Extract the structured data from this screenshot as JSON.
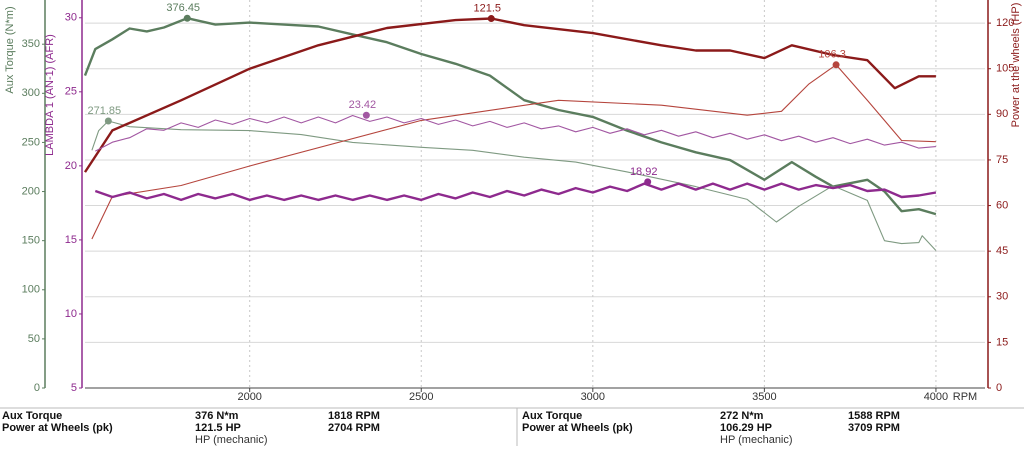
{
  "chart_data": {
    "type": "line",
    "xlabel": "RPM",
    "xlim": [
      1520,
      4143
    ],
    "xticks": [
      2000,
      2500,
      3000,
      3500,
      4000
    ],
    "ylabel": "Aux Torque (N*m)",
    "ycolor": "#5b7d5e",
    "ylim": [
      0,
      395
    ],
    "yticks": [
      0,
      50,
      100,
      150,
      200,
      250,
      300,
      350
    ],
    "y2label": "Power at the wheels (HP)",
    "y2color": "#8b1a1a",
    "y2lim": [
      0,
      127.6
    ],
    "y2ticks": [
      0,
      15,
      30,
      45,
      60,
      75,
      90,
      105,
      120
    ],
    "y3label": "LAMBDA 1 (AN-1) (AFR)",
    "y3color": "#8e2a8e",
    "y3lim": [
      5,
      31.2
    ],
    "y3ticks": [
      5,
      10,
      15,
      20,
      25,
      30
    ],
    "grid": true,
    "series": [
      {
        "axis": "y",
        "color": "#5b7d5e",
        "width": 2.4,
        "x": [
          1520,
          1550,
          1600,
          1650,
          1700,
          1750,
          1818,
          1900,
          2000,
          2100,
          2200,
          2300,
          2400,
          2500,
          2600,
          2700,
          2800,
          2900,
          3000,
          3100,
          3200,
          3300,
          3400,
          3500,
          3580,
          3650,
          3700,
          3800,
          3850,
          3900,
          3950,
          4000
        ],
        "values": [
          318,
          345,
          355,
          366,
          363,
          367,
          376.45,
          370,
          372,
          370,
          368,
          360,
          352,
          340,
          330,
          318,
          293,
          283,
          276,
          262,
          250,
          240,
          232,
          212,
          230,
          215,
          205,
          212,
          200,
          180,
          182,
          177
        ],
        "peak": {
          "x": 1818,
          "value": 376.45,
          "label": "376.45"
        }
      },
      {
        "axis": "y",
        "color": "#7f9a82",
        "width": 1.1,
        "x": [
          1540,
          1560,
          1588,
          1650,
          1700,
          1800,
          2000,
          2150,
          2300,
          2500,
          2650,
          2800,
          2950,
          3100,
          3300,
          3450,
          3535,
          3600,
          3700,
          3800,
          3850,
          3900,
          3950,
          3960,
          4000
        ],
        "values": [
          242,
          262,
          271.85,
          266,
          265,
          263,
          262,
          258,
          250,
          245,
          242,
          235,
          230,
          220,
          205,
          192,
          169,
          185,
          206,
          191,
          150,
          147,
          148,
          155,
          140
        ],
        "peak": {
          "x": 1588,
          "value": 271.85,
          "label": "271.85"
        }
      },
      {
        "axis": "y2",
        "color": "#8b1a1a",
        "width": 2.4,
        "x": [
          1520,
          1600,
          1800,
          2000,
          2200,
          2400,
          2600,
          2704,
          2800,
          3000,
          3200,
          3300,
          3400,
          3500,
          3580,
          3700,
          3800,
          3880,
          3950,
          4000
        ],
        "values": [
          71,
          84.7,
          94.6,
          105,
          112.7,
          118.4,
          121,
          121.5,
          119.3,
          116.7,
          112.7,
          111,
          111,
          108.5,
          112.7,
          109.5,
          107.8,
          98.6,
          102.5,
          102.5
        ],
        "peak": {
          "x": 2704,
          "value": 121.5,
          "label": "121.5"
        }
      },
      {
        "axis": "y2",
        "color": "#b5453d",
        "width": 1.1,
        "x": [
          1540,
          1600,
          1800,
          2000,
          2500,
          2900,
          3200,
          3450,
          3550,
          3630,
          3709,
          3800,
          3900,
          4000
        ],
        "values": [
          49,
          63,
          66.6,
          73,
          88,
          94.6,
          93,
          89.7,
          91,
          100,
          106.29,
          94.6,
          81.4,
          81
        ],
        "peak": {
          "x": 3709,
          "value": 106.29,
          "label": "106.3"
        }
      },
      {
        "axis": "y3",
        "color": "#8e2a8e",
        "width": 2.4,
        "x": [
          1550,
          1600,
          1650,
          1700,
          1750,
          1800,
          1850,
          1900,
          1950,
          2000,
          2050,
          2100,
          2150,
          2200,
          2250,
          2300,
          2350,
          2400,
          2450,
          2500,
          2550,
          2600,
          2650,
          2700,
          2750,
          2800,
          2850,
          2900,
          2950,
          3000,
          3050,
          3100,
          3150,
          3200,
          3250,
          3300,
          3350,
          3400,
          3450,
          3500,
          3550,
          3600,
          3650,
          3700,
          3750,
          3800,
          3850,
          3900,
          3950,
          4000
        ],
        "values": [
          18.3,
          17.9,
          18.2,
          17.8,
          18.1,
          17.7,
          18.1,
          17.8,
          18.1,
          17.7,
          18.0,
          17.7,
          18.0,
          17.7,
          18.0,
          17.7,
          18.0,
          17.7,
          18.0,
          17.7,
          18.1,
          17.8,
          18.2,
          17.9,
          18.3,
          18.0,
          18.4,
          18.1,
          18.5,
          18.2,
          18.6,
          18.3,
          18.8,
          18.4,
          18.8,
          18.4,
          18.8,
          18.4,
          18.8,
          18.4,
          18.8,
          18.4,
          18.7,
          18.5,
          18.7,
          18.3,
          18.4,
          17.9,
          18.0,
          18.2
        ],
        "peak": {
          "x": 3160,
          "value": 18.92,
          "label": "18.92"
        }
      },
      {
        "axis": "y3",
        "color": "#a257a2",
        "width": 1.1,
        "x": [
          1550,
          1600,
          1650,
          1700,
          1750,
          1800,
          1850,
          1900,
          1950,
          2000,
          2050,
          2100,
          2150,
          2200,
          2250,
          2300,
          2350,
          2400,
          2450,
          2500,
          2550,
          2600,
          2650,
          2700,
          2750,
          2800,
          2850,
          2900,
          2950,
          3000,
          3050,
          3100,
          3150,
          3200,
          3250,
          3300,
          3350,
          3400,
          3450,
          3500,
          3550,
          3600,
          3650,
          3700,
          3750,
          3800,
          3850,
          3900,
          3950,
          4000
        ],
        "values": [
          21.0,
          21.6,
          21.9,
          22.5,
          22.4,
          22.9,
          22.6,
          23.1,
          22.8,
          23.2,
          22.9,
          23.3,
          22.9,
          23.3,
          22.9,
          23.4,
          23.0,
          23.3,
          22.9,
          23.2,
          22.8,
          23.1,
          22.7,
          23.0,
          22.6,
          22.9,
          22.5,
          22.7,
          22.3,
          22.6,
          22.2,
          22.5,
          22.1,
          22.4,
          22.0,
          22.3,
          21.9,
          22.2,
          21.8,
          22.1,
          21.7,
          22.0,
          21.6,
          21.9,
          21.5,
          21.8,
          21.4,
          21.6,
          21.2,
          21.3
        ],
        "peak": {
          "x": 2340,
          "value": 23.42,
          "label": "23.42"
        }
      }
    ]
  },
  "footer": {
    "panels": [
      {
        "rows": [
          [
            "Aux Torque",
            "376 N*m",
            "1818 RPM"
          ],
          [
            "Power at Wheels (pk)",
            "121.5 HP",
            "2704 RPM"
          ]
        ],
        "note": "HP (mechanic)"
      },
      {
        "rows": [
          [
            "Aux Torque",
            "272 N*m",
            "1588 RPM"
          ],
          [
            "Power at Wheels (pk)",
            "106.29 HP",
            "3709 RPM"
          ]
        ],
        "note": "HP (mechanic)"
      }
    ]
  }
}
